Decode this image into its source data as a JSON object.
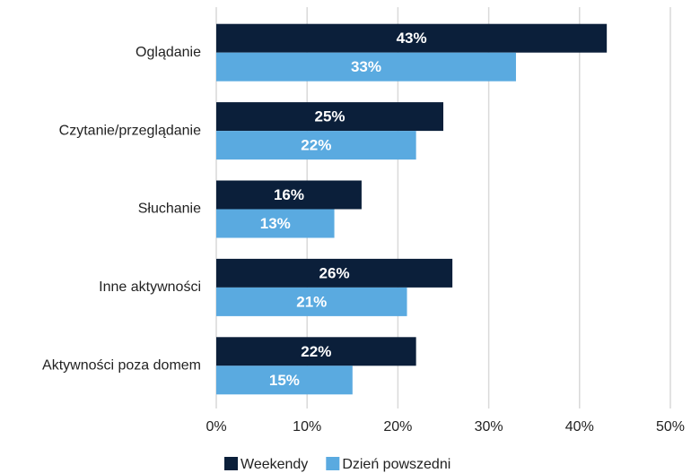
{
  "chart_data": {
    "type": "bar",
    "orientation": "horizontal",
    "categories": [
      "Oglądanie",
      "Czytanie/przeglądanie",
      "Słuchanie",
      "Inne aktywności",
      "Aktywności poza domem"
    ],
    "series": [
      {
        "name": "Weekendy",
        "color": "#0b1f3a",
        "values": [
          43,
          25,
          16,
          26,
          22
        ],
        "value_labels": [
          "43%",
          "25%",
          "16%",
          "26%",
          "22%"
        ]
      },
      {
        "name": "Dzień powszedni",
        "color": "#5aaae0",
        "values": [
          33,
          22,
          13,
          21,
          15
        ],
        "value_labels": [
          "33%",
          "22%",
          "13%",
          "21%",
          "15%"
        ]
      }
    ],
    "xlim": [
      0,
      50
    ],
    "xticks": [
      {
        "value": 0,
        "label": "0%"
      },
      {
        "value": 10,
        "label": "10%"
      },
      {
        "value": 20,
        "label": "20%"
      },
      {
        "value": 30,
        "label": "30%"
      },
      {
        "value": 40,
        "label": "40%"
      },
      {
        "value": 50,
        "label": "50%"
      }
    ],
    "grid": true,
    "legend": "bottom"
  }
}
